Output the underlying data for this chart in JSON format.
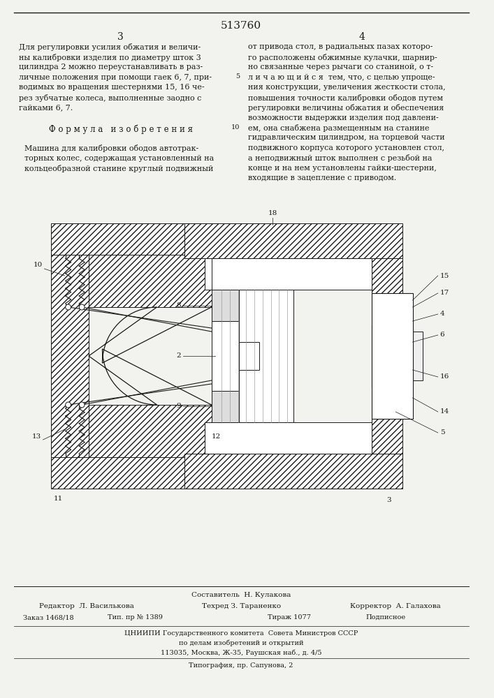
{
  "patent_number": "513760",
  "page_left": "3",
  "page_right": "4",
  "background_color": "#f2f2ee",
  "text_color": "#1a1a1a",
  "left_column_lines": [
    "Для регулировки усилия обжатия и величи-",
    "ны калибровки изделия по диаметру шток 3",
    "цилиндра 2 можно переустанавливать в раз-",
    "личные положения при помощи гаек 6, 7, при-",
    "водимых во вращения шестернями 15, 16 че-",
    "рез зубчатые колеса, выполненные заодно с",
    "гайками 6, 7.",
    "",
    "Ф о р м у л а   и з о б р е т е н и я",
    "",
    "Машина для калибровки ободов автотрак-",
    "торных колес, содержащая установленный на",
    "кольцеобразной станине круглый подвижный"
  ],
  "right_column_lines": [
    "от привода стол, в радиальных пазах которо-",
    "го расположены обжимные кулачки, шарнир-",
    "но связанные через рычаги со станиной, о т-",
    "л и ч а ю щ и й с я  тем, что, с целью упроще-",
    "ния конструкции, увеличения жесткости стола,",
    "повышения точности калибровки ободов путем",
    "регулировки величины обжатия и обеспечения",
    "возможности выдержки изделия под давлени-",
    "ем, она снабжена размещенным на станине",
    "гидравлическим цилиндром, на торцевой части",
    "подвижного корпуса которого установлен стол,",
    "а неподвижный шток выполнен с резьбой на",
    "конце и на нем установлены гайки-шестерни,",
    "входящие в зацепление с приводом."
  ],
  "footer_sestavitel": "Составитель  Н. Кулакова",
  "footer_redaktor": "Редактор  Л. Василькова",
  "footer_tehred": "Техред З. Тараненко",
  "footer_korrektor": "Корректор  А. Галахова",
  "footer_zakaz": "Заказ 1468/18",
  "footer_tip_nr": "Тип. пр № 1389",
  "footer_tirazh": "Тираж 1077",
  "footer_podpisnoe": "Подписное",
  "footer_cniipii": "ЦНИИПИ Государственного комитета  Совета Министров СССР",
  "footer_po_delam": "по делам изобретений и открытий",
  "footer_address": "113035, Москва, Ж-35, Раушская наб., д. 4/5",
  "footer_tipografia": "Типография, пр. Сапунова, 2"
}
